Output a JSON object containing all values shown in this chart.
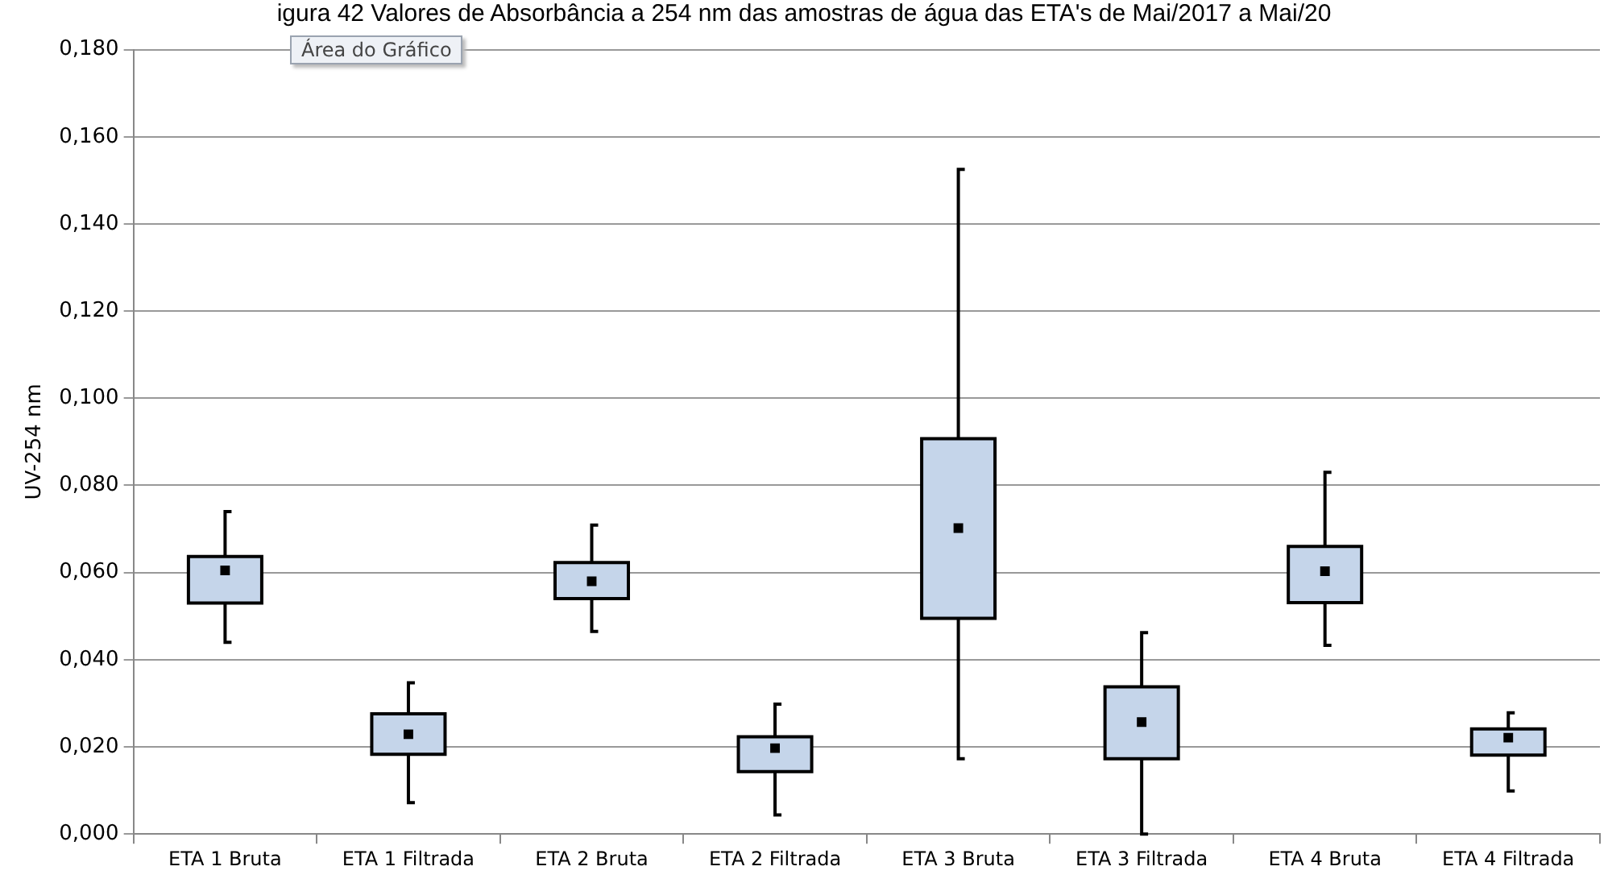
{
  "chart_data": {
    "type": "box",
    "title": "igura 42 Valores de Absorbância a 254 nm das amostras de água das ETA's de Mai/2017 a Mai/20",
    "ylabel": "UV-254 nm",
    "annotations": [
      "Área do Gráfico"
    ],
    "categories": [
      "ETA 1 Bruta",
      "ETA 1 Filtrada",
      "ETA 2 Bruta",
      "ETA 2 Filtrada",
      "ETA 3 Bruta",
      "ETA 3 Filtrada",
      "ETA 4 Bruta",
      "ETA 4 Filtrada"
    ],
    "color": "#c5d5ea",
    "boxes": [
      {
        "low": 0.044,
        "q1": 0.053,
        "median": 0.0605,
        "q3": 0.0637,
        "high": 0.074
      },
      {
        "low": 0.0072,
        "q1": 0.0183,
        "median": 0.0229,
        "q3": 0.0276,
        "high": 0.0347
      },
      {
        "low": 0.0465,
        "q1": 0.054,
        "median": 0.058,
        "q3": 0.0623,
        "high": 0.0709
      },
      {
        "low": 0.0044,
        "q1": 0.0143,
        "median": 0.0197,
        "q3": 0.0223,
        "high": 0.0298
      },
      {
        "low": 0.0173,
        "q1": 0.0495,
        "median": 0.0702,
        "q3": 0.0907,
        "high": 0.1525
      },
      {
        "low": 0,
        "q1": 0.0173,
        "median": 0.0257,
        "q3": 0.0338,
        "high": 0.0462
      },
      {
        "low": 0.0433,
        "q1": 0.0531,
        "median": 0.0603,
        "q3": 0.066,
        "high": 0.083
      },
      {
        "low": 0.0099,
        "q1": 0.0181,
        "median": 0.0221,
        "q3": 0.0241,
        "high": 0.0278
      }
    ],
    "ylim": [
      0,
      0.18
    ],
    "yticks": [
      {
        "value": 0,
        "label": "0,000"
      },
      {
        "value": 0.02,
        "label": "0,020"
      },
      {
        "value": 0.04,
        "label": "0,040"
      },
      {
        "value": 0.06,
        "label": "0,060"
      },
      {
        "value": 0.08,
        "label": "0,080"
      },
      {
        "value": 0.1,
        "label": "0,100"
      },
      {
        "value": 0.12,
        "label": "0,120"
      },
      {
        "value": 0.14,
        "label": "0,140"
      },
      {
        "value": 0.16,
        "label": "0,160"
      },
      {
        "value": 0.18,
        "label": "0,180"
      }
    ],
    "grid": "y",
    "legend": false,
    "marker": "square"
  }
}
